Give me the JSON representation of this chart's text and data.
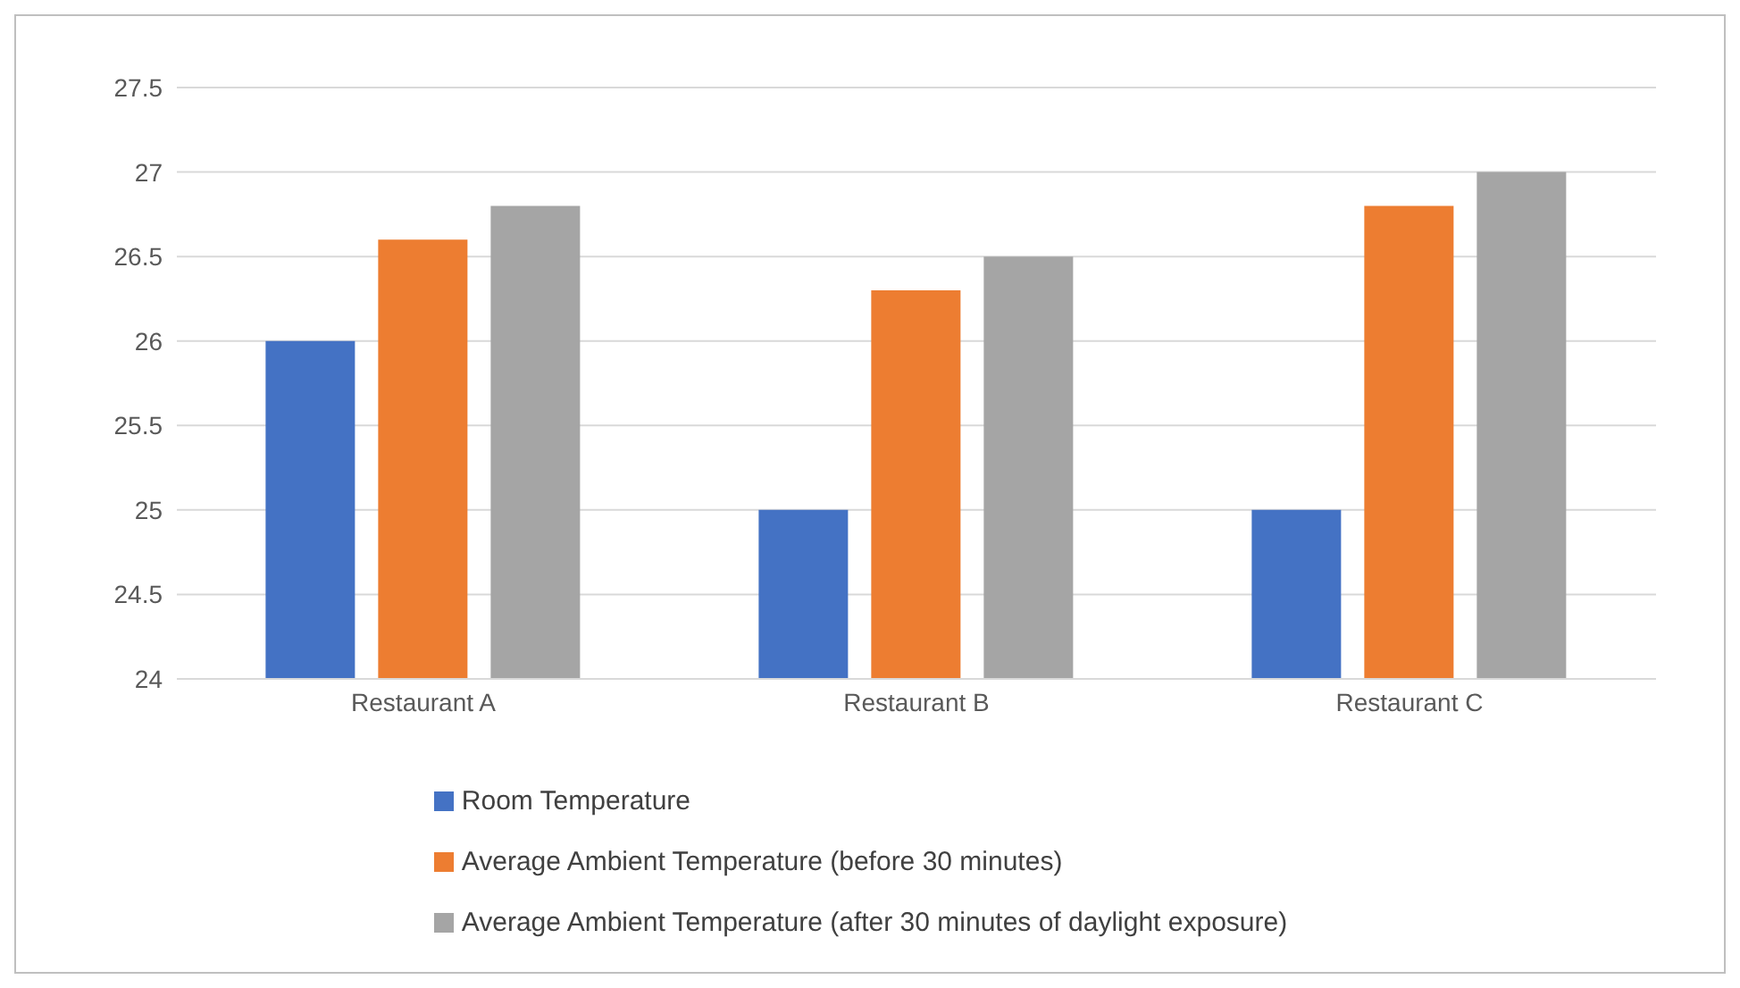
{
  "chart_data": {
    "type": "bar",
    "categories": [
      "Restaurant A",
      "Restaurant B",
      "Restaurant C"
    ],
    "series": [
      {
        "name": "Room Temperature",
        "color": "#4472c4",
        "values": [
          26,
          25,
          25
        ]
      },
      {
        "name": "Average Ambient Temperature (before 30 minutes)",
        "color": "#ed7d31",
        "values": [
          26.6,
          26.3,
          26.8
        ]
      },
      {
        "name": "Average Ambient Temperature (after 30 minutes of daylight exposure)",
        "color": "#a5a5a5",
        "values": [
          26.8,
          26.5,
          27
        ]
      }
    ],
    "ylim": [
      24,
      27.5
    ],
    "yticks": [
      24,
      24.5,
      25,
      25.5,
      26,
      26.5,
      27,
      27.5
    ],
    "grid": "y",
    "legend": "bottom"
  }
}
